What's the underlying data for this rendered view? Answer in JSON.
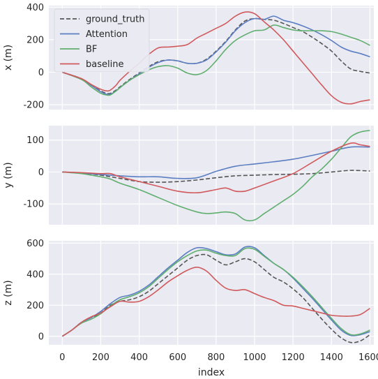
{
  "chart_data": {
    "type": "line",
    "xlabel": "index",
    "xlim": [
      -70,
      1620
    ],
    "xticks": [
      0,
      200,
      400,
      600,
      800,
      1000,
      1200,
      1400,
      1600
    ],
    "grid": true,
    "legend": {
      "placement": "top-left",
      "entries": [
        {
          "name": "ground_truth",
          "color": "#555555",
          "dash": true
        },
        {
          "name": "Attention",
          "color": "#5b7ec2",
          "dash": false
        },
        {
          "name": "BF",
          "color": "#5fae6e",
          "dash": false
        },
        {
          "name": "baseline",
          "color": "#d0595c",
          "dash": false
        }
      ]
    },
    "panels": [
      {
        "ylabel": "x (m)",
        "ylim": [
          -230,
          410
        ],
        "yticks": [
          -200,
          0,
          200,
          400
        ],
        "series": [
          {
            "name": "ground_truth",
            "x": [
              0,
              100,
              150,
              200,
              230,
              250,
              280,
              300,
              350,
              400,
              450,
              500,
              550,
              600,
              650,
              700,
              750,
              800,
              850,
              900,
              950,
              1000,
              1050,
              1100,
              1150,
              1200,
              1250,
              1300,
              1350,
              1400,
              1450,
              1500,
              1550,
              1600
            ],
            "y": [
              0,
              -40,
              -80,
              -115,
              -130,
              -130,
              -110,
              -90,
              -45,
              -5,
              35,
              65,
              75,
              70,
              55,
              55,
              80,
              130,
              190,
              260,
              315,
              330,
              325,
              320,
              300,
              275,
              250,
              215,
              175,
              130,
              70,
              20,
              5,
              -5
            ]
          },
          {
            "name": "Attention",
            "x": [
              0,
              100,
              150,
              200,
              230,
              250,
              280,
              300,
              350,
              400,
              450,
              500,
              550,
              600,
              650,
              700,
              750,
              800,
              850,
              900,
              950,
              1000,
              1050,
              1100,
              1150,
              1200,
              1250,
              1300,
              1350,
              1400,
              1450,
              1500,
              1550,
              1600
            ],
            "y": [
              0,
              -40,
              -80,
              -120,
              -135,
              -135,
              -115,
              -95,
              -50,
              -10,
              30,
              60,
              75,
              70,
              55,
              55,
              75,
              125,
              185,
              255,
              305,
              330,
              325,
              345,
              320,
              305,
              285,
              260,
              230,
              195,
              155,
              130,
              115,
              95
            ]
          },
          {
            "name": "BF",
            "x": [
              0,
              100,
              150,
              200,
              230,
              250,
              280,
              300,
              350,
              400,
              450,
              500,
              550,
              600,
              650,
              700,
              750,
              800,
              850,
              900,
              950,
              1000,
              1050,
              1100,
              1150,
              1200,
              1250,
              1300,
              1350,
              1400,
              1450,
              1500,
              1550,
              1600
            ],
            "y": [
              0,
              -45,
              -90,
              -130,
              -140,
              -140,
              -115,
              -95,
              -50,
              -15,
              15,
              35,
              40,
              25,
              -5,
              -15,
              10,
              70,
              140,
              195,
              230,
              255,
              260,
              290,
              275,
              260,
              255,
              255,
              255,
              250,
              235,
              215,
              195,
              165
            ]
          },
          {
            "name": "baseline",
            "x": [
              0,
              100,
              150,
              200,
              230,
              250,
              280,
              300,
              350,
              400,
              450,
              500,
              550,
              600,
              650,
              700,
              750,
              800,
              850,
              900,
              950,
              1000,
              1050,
              1100,
              1150,
              1200,
              1250,
              1300,
              1350,
              1400,
              1450,
              1500,
              1550,
              1600
            ],
            "y": [
              0,
              -40,
              -75,
              -105,
              -115,
              -110,
              -80,
              -50,
              5,
              55,
              110,
              150,
              155,
              160,
              170,
              210,
              240,
              270,
              300,
              345,
              370,
              360,
              310,
              260,
              200,
              130,
              60,
              -10,
              -80,
              -145,
              -185,
              -195,
              -180,
              -170
            ]
          }
        ]
      },
      {
        "ylabel": "y (m)",
        "ylim": [
          -165,
          145
        ],
        "yticks": [
          -100,
          0,
          100
        ],
        "series": [
          {
            "name": "ground_truth",
            "x": [
              0,
              100,
              200,
              300,
              400,
              500,
              600,
              700,
              800,
              900,
              1000,
              1100,
              1200,
              1300,
              1400,
              1500,
              1600
            ],
            "y": [
              0,
              -3,
              -10,
              -20,
              -30,
              -32,
              -30,
              -25,
              -18,
              -12,
              -10,
              -8,
              -7,
              -5,
              0,
              5,
              3
            ]
          },
          {
            "name": "Attention",
            "x": [
              0,
              100,
              200,
              300,
              400,
              500,
              600,
              700,
              800,
              900,
              1000,
              1100,
              1200,
              1300,
              1400,
              1500,
              1600
            ],
            "y": [
              0,
              -3,
              -8,
              -12,
              -15,
              -15,
              -20,
              -18,
              2,
              18,
              25,
              32,
              40,
              52,
              65,
              78,
              78
            ]
          },
          {
            "name": "BF",
            "x": [
              0,
              100,
              150,
              200,
              250,
              300,
              400,
              500,
              600,
              700,
              750,
              800,
              850,
              900,
              950,
              1000,
              1050,
              1100,
              1150,
              1200,
              1250,
              1300,
              1350,
              1400,
              1450,
              1500,
              1550,
              1600
            ],
            "y": [
              0,
              -5,
              -10,
              -15,
              -22,
              -35,
              -55,
              -80,
              -105,
              -125,
              -130,
              -128,
              -125,
              -130,
              -150,
              -150,
              -130,
              -110,
              -90,
              -70,
              -45,
              -15,
              10,
              40,
              75,
              110,
              125,
              130
            ]
          },
          {
            "name": "baseline",
            "x": [
              0,
              100,
              200,
              250,
              300,
              400,
              500,
              600,
              700,
              800,
              850,
              900,
              950,
              1000,
              1100,
              1200,
              1300,
              1400,
              1500,
              1550,
              1600
            ],
            "y": [
              0,
              -2,
              -5,
              -5,
              -15,
              -30,
              -45,
              -60,
              -65,
              -55,
              -50,
              -60,
              -60,
              -50,
              -28,
              -5,
              30,
              65,
              90,
              85,
              80
            ]
          }
        ]
      },
      {
        "ylabel": "z (m)",
        "ylim": [
          -55,
          615
        ],
        "yticks": [
          0,
          200,
          400,
          600
        ],
        "series": [
          {
            "name": "ground_truth",
            "x": [
              0,
              50,
              100,
              150,
              200,
              250,
              300,
              350,
              400,
              450,
              500,
              550,
              600,
              650,
              700,
              750,
              800,
              850,
              900,
              950,
              1000,
              1050,
              1100,
              1150,
              1200,
              1250,
              1300,
              1350,
              1400,
              1450,
              1500,
              1550,
              1600
            ],
            "y": [
              0,
              40,
              90,
              120,
              150,
              200,
              225,
              235,
              255,
              290,
              340,
              390,
              440,
              490,
              520,
              525,
              490,
              460,
              480,
              500,
              480,
              430,
              380,
              350,
              305,
              250,
              180,
              110,
              45,
              -10,
              -40,
              -30,
              10
            ]
          },
          {
            "name": "Attention",
            "x": [
              0,
              50,
              100,
              150,
              200,
              250,
              300,
              350,
              400,
              450,
              500,
              550,
              600,
              650,
              700,
              750,
              800,
              850,
              900,
              950,
              1000,
              1050,
              1100,
              1150,
              1200,
              1250,
              1300,
              1350,
              1400,
              1450,
              1500,
              1550,
              1600
            ],
            "y": [
              0,
              40,
              90,
              120,
              160,
              210,
              250,
              265,
              290,
              330,
              385,
              440,
              490,
              540,
              570,
              565,
              545,
              525,
              530,
              575,
              570,
              520,
              470,
              430,
              375,
              310,
              245,
              175,
              105,
              40,
              5,
              10,
              30
            ]
          },
          {
            "name": "BF",
            "x": [
              0,
              50,
              100,
              150,
              200,
              250,
              300,
              350,
              400,
              450,
              500,
              550,
              600,
              650,
              700,
              750,
              800,
              850,
              900,
              950,
              1000,
              1050,
              1100,
              1150,
              1200,
              1250,
              1300,
              1350,
              1400,
              1450,
              1500,
              1550,
              1600
            ],
            "y": [
              0,
              40,
              85,
              110,
              145,
              195,
              235,
              255,
              280,
              320,
              375,
              430,
              480,
              520,
              550,
              555,
              535,
              520,
              520,
              565,
              560,
              515,
              470,
              430,
              380,
              320,
              255,
              185,
              115,
              50,
              10,
              15,
              40
            ]
          },
          {
            "name": "baseline",
            "x": [
              0,
              50,
              100,
              150,
              200,
              250,
              300,
              350,
              400,
              450,
              500,
              550,
              600,
              650,
              700,
              750,
              800,
              850,
              900,
              950,
              1000,
              1050,
              1100,
              1150,
              1200,
              1250,
              1300,
              1350,
              1400,
              1450,
              1500,
              1550,
              1600
            ],
            "y": [
              0,
              40,
              90,
              125,
              150,
              190,
              225,
              220,
              225,
              255,
              300,
              350,
              390,
              425,
              445,
              420,
              360,
              310,
              295,
              300,
              275,
              250,
              230,
              200,
              195,
              180,
              165,
              150,
              135,
              130,
              130,
              140,
              180
            ]
          }
        ]
      }
    ]
  }
}
